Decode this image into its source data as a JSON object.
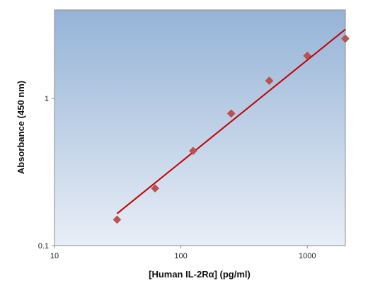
{
  "chart_data": {
    "type": "scatter",
    "title": "",
    "xlabel": "[Human IL-2Rα] (pg/ml)",
    "ylabel": "Absorbance (450 nm)",
    "xscale": "log",
    "yscale": "log",
    "xlim": [
      10,
      2000
    ],
    "ylim": [
      0.1,
      4
    ],
    "xticks": [
      10,
      100,
      1000
    ],
    "xtick_labels": [
      "10",
      "100",
      "1000"
    ],
    "yticks": [
      0.1,
      1
    ],
    "ytick_labels": [
      "0.1",
      "1"
    ],
    "grid": false,
    "legend": "none",
    "background": "gradient-blue",
    "series": [
      {
        "kind": "points",
        "marker": "diamond",
        "color": "#c0504d",
        "x": [
          31.25,
          62.5,
          125,
          250,
          500,
          1000,
          2000
        ],
        "y": [
          0.15,
          0.245,
          0.44,
          0.79,
          1.32,
          1.95,
          2.55
        ]
      },
      {
        "kind": "fit-line",
        "color": "#c00000",
        "x": [
          31.25,
          2000
        ],
        "y": [
          0.165,
          2.95
        ]
      }
    ]
  }
}
